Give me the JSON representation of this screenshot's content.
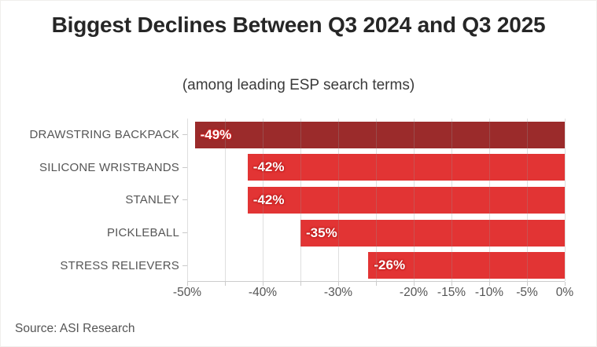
{
  "header": {
    "title": "Biggest Declines Between Q3 2024 and Q3 2025",
    "subtitle": "(among leading ESP search terms)"
  },
  "footer": {
    "source": "Source: ASI Research"
  },
  "colors": {
    "bar_default": "#e23434",
    "bar_highlight": "#9b2b2b",
    "gridline": "#e2e2e2",
    "axis_line": "#cccccc",
    "label_text": "#565656",
    "value_text": "#ffffff"
  },
  "chart_data": {
    "type": "bar",
    "orientation": "horizontal",
    "title": "Biggest Declines Between Q3 2024 and Q3 2025",
    "subtitle": "(among leading ESP search terms)",
    "source": "Source: ASI Research",
    "categories": [
      "DRAWSTRING BACKPACK",
      "SILICONE WRISTBANDS",
      "STANLEY",
      "PICKLEBALL",
      "STRESS RELIEVERS"
    ],
    "values": [
      -49,
      -42,
      -42,
      -35,
      -26
    ],
    "value_labels": [
      "-49%",
      "-42%",
      "-42%",
      "-35%",
      "-26%"
    ],
    "bar_colors": [
      "#9b2b2b",
      "#e23434",
      "#e23434",
      "#e23434",
      "#e23434"
    ],
    "xlim": [
      -50,
      0
    ],
    "x_tick_values": [
      -50,
      -40,
      -30,
      -20,
      -15,
      -10,
      -5,
      0
    ],
    "x_tick_labels": [
      "-50%",
      "-40%",
      "-30%",
      "-20%",
      "-15%",
      "-10%",
      "-5%",
      "0%"
    ],
    "gridline_step": 5,
    "grid": true,
    "legend": false,
    "value_label_position": "inside-start"
  }
}
